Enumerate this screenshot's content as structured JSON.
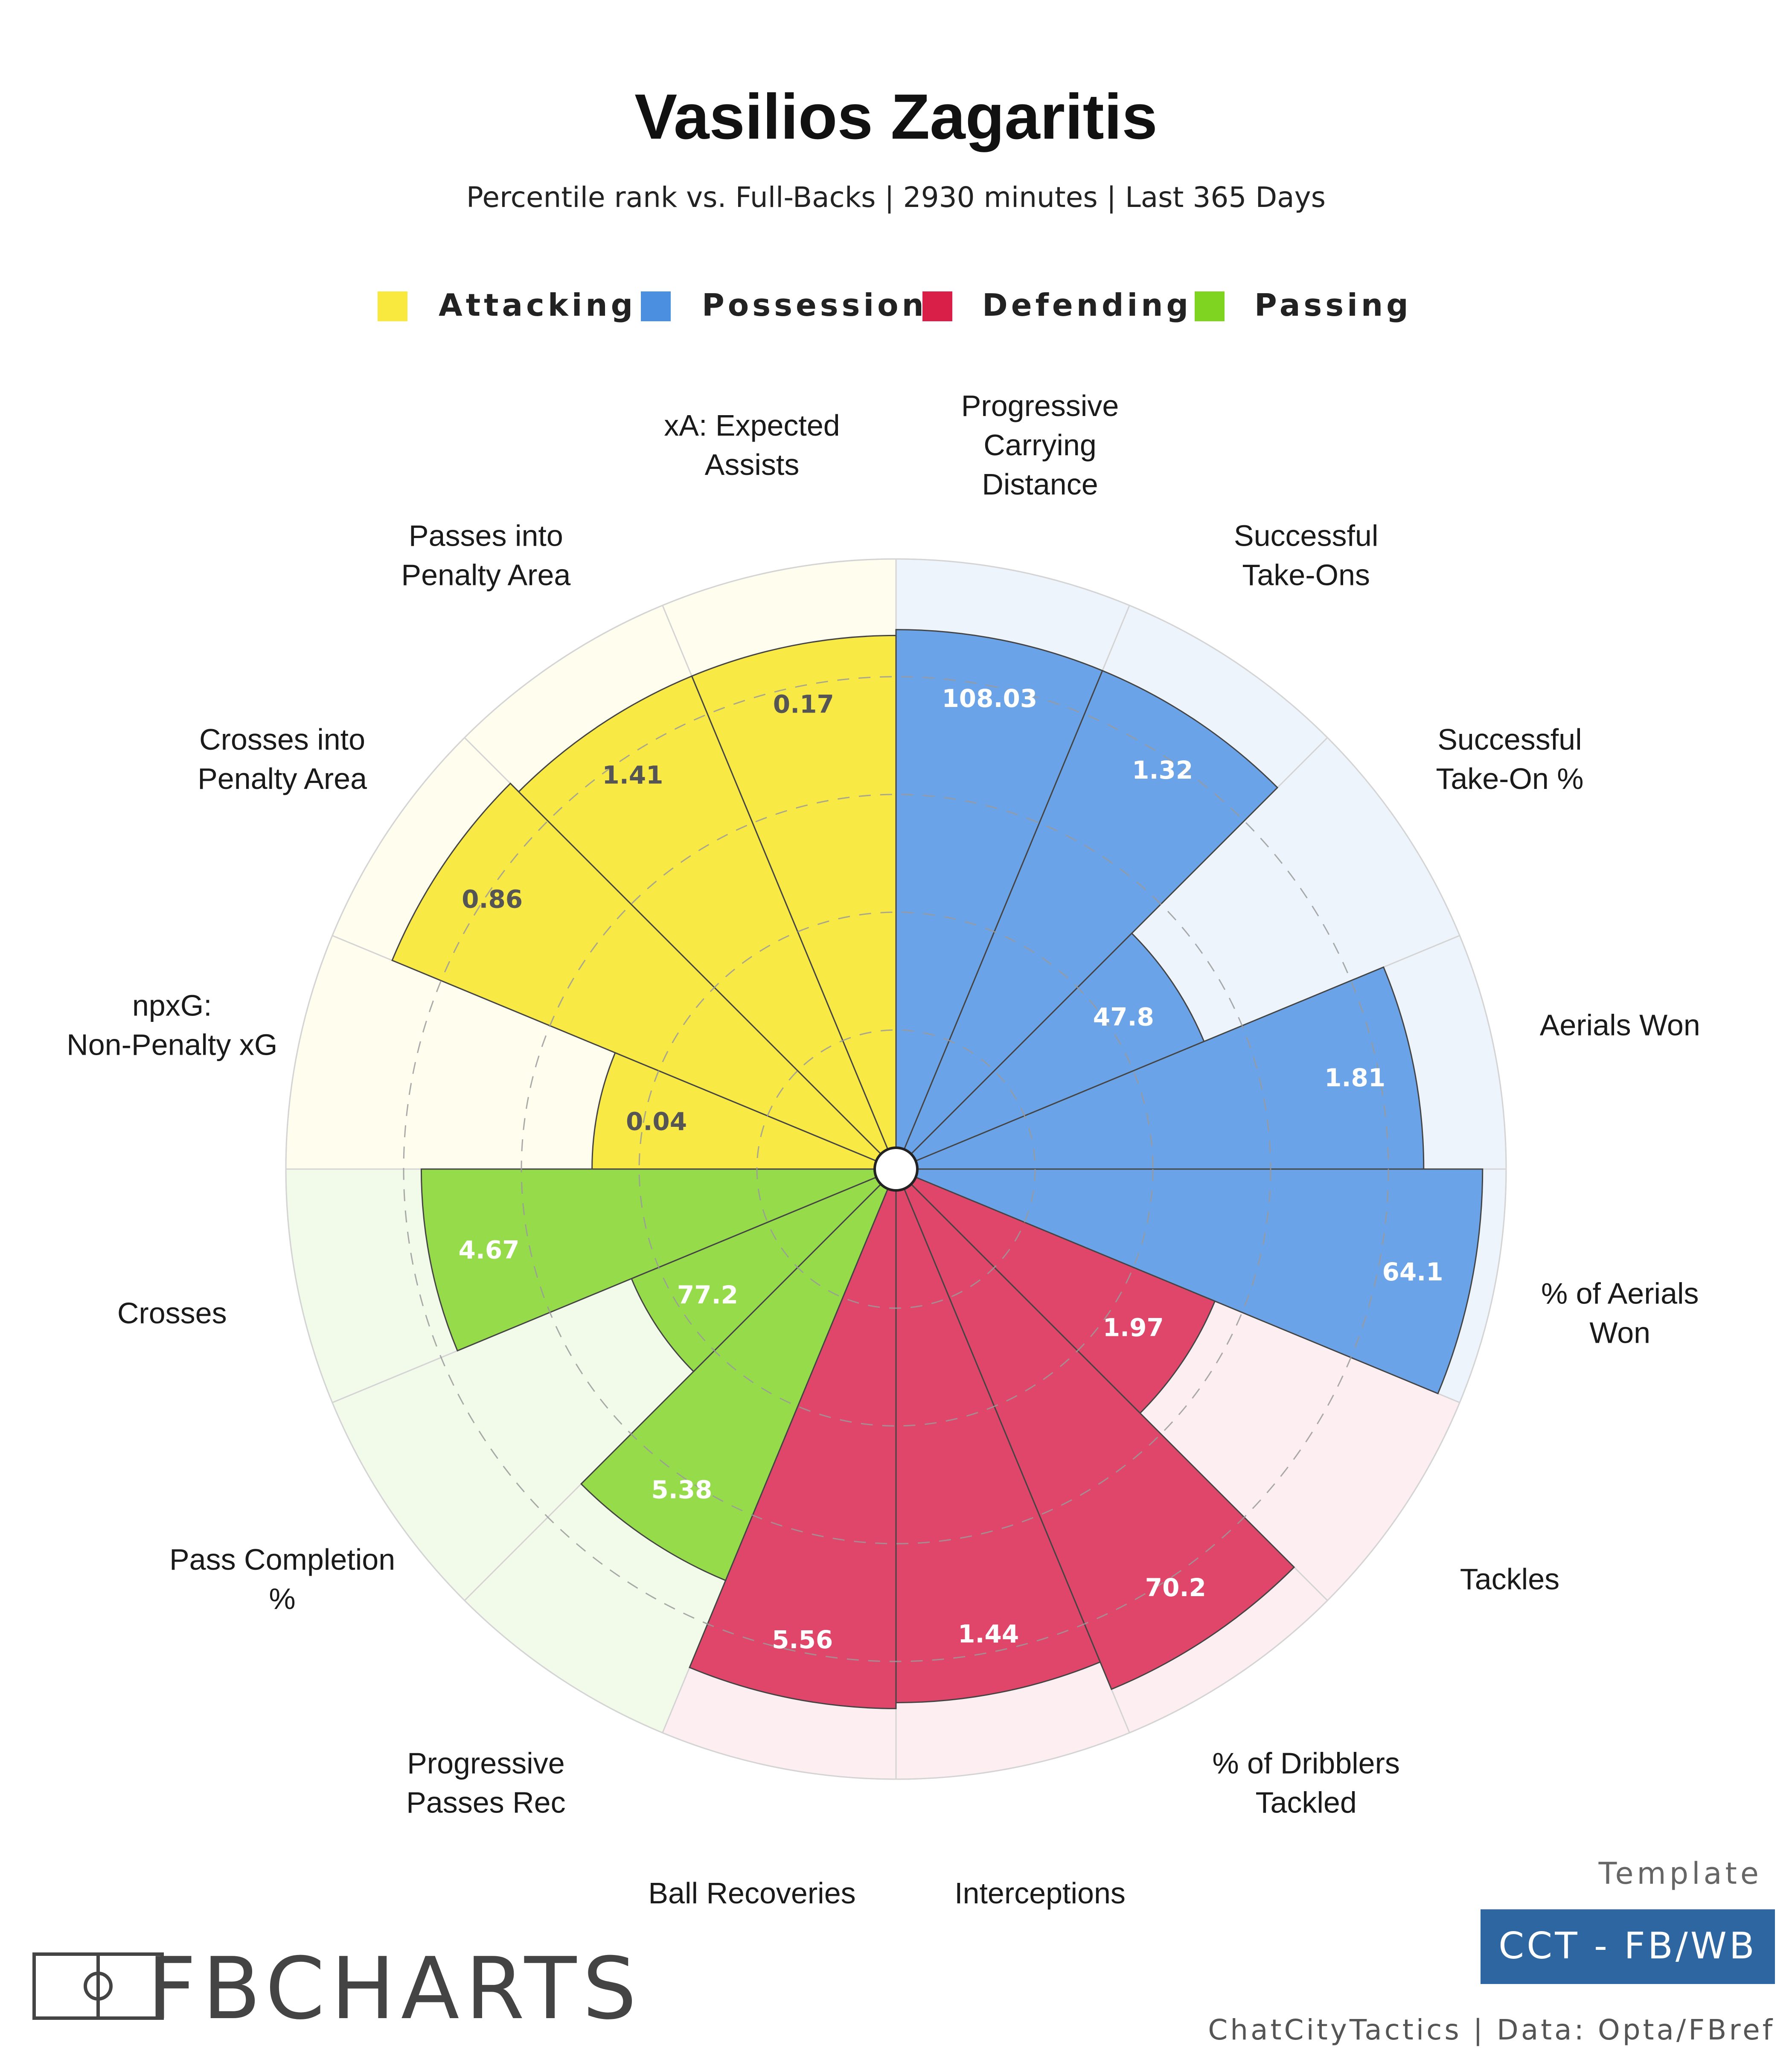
{
  "header": {
    "title": "Vasilios Zagaritis",
    "subtitle": "Percentile rank vs. Full-Backs | 2930 minutes | Last 365 Days"
  },
  "legend": [
    {
      "name": "Attacking",
      "color": "#f9e93f"
    },
    {
      "name": "Possession",
      "color": "#4a8fe0"
    },
    {
      "name": "Defending",
      "color": "#d91e48"
    },
    {
      "name": "Passing",
      "color": "#7fd321"
    }
  ],
  "colors": {
    "Attacking": {
      "fill": "#f9e945",
      "bg": "#fefdee"
    },
    "Possession": {
      "fill": "#6aa3e8",
      "bg": "#eef4fc"
    },
    "Defending": {
      "fill": "#e0456a",
      "bg": "#fdeef2"
    },
    "Passing": {
      "fill": "#96dc4a",
      "bg": "#f2faea"
    },
    "value_text_light": "#ffffff",
    "value_text_dark": "#555555",
    "footer_box": "#2e66a1"
  },
  "chart_data": {
    "type": "polar-bar",
    "rmax": 100,
    "value_ring": 20,
    "metrics": [
      {
        "label": "Progressive Carrying Distance",
        "category": "Possession",
        "value": "108.03",
        "percentile": 88
      },
      {
        "label": "Successful Take-Ons",
        "category": "Possession",
        "value": "1.32",
        "percentile": 88
      },
      {
        "label": "Successful Take-On %",
        "category": "Possession",
        "value": "47.8",
        "percentile": 53
      },
      {
        "label": "Aerials Won",
        "category": "Possession",
        "value": "1.81",
        "percentile": 86
      },
      {
        "label": "% of Aerials Won",
        "category": "Possession",
        "value": "64.1",
        "percentile": 96
      },
      {
        "label": "Tackles",
        "category": "Defending",
        "value": "1.97",
        "percentile": 55
      },
      {
        "label": "% of Dribblers Tackled",
        "category": "Defending",
        "value": "70.2",
        "percentile": 92
      },
      {
        "label": "Interceptions",
        "category": "Defending",
        "value": "1.44",
        "percentile": 87
      },
      {
        "label": "Ball Recoveries",
        "category": "Defending",
        "value": "5.56",
        "percentile": 88
      },
      {
        "label": "Progressive Passes Rec",
        "category": "Passing",
        "value": "5.38",
        "percentile": 72
      },
      {
        "label": "Pass Completion %",
        "category": "Passing",
        "value": "77.2",
        "percentile": 45
      },
      {
        "label": "Crosses",
        "category": "Passing",
        "value": "4.67",
        "percentile": 77
      },
      {
        "label": "npxG: Non-Penalty xG",
        "category": "Attacking",
        "value": "0.04",
        "percentile": 48
      },
      {
        "label": "Crosses into Penalty Area",
        "category": "Attacking",
        "value": "0.86",
        "percentile": 89
      },
      {
        "label": "Passes into Penalty Area",
        "category": "Attacking",
        "value": "1.41",
        "percentile": 87
      },
      {
        "label": "xA: Expected Assists",
        "category": "Attacking",
        "value": "0.17",
        "percentile": 87
      }
    ]
  },
  "footer": {
    "template_label": "Template",
    "template_name": "CCT - FB/WB",
    "credit": "ChatCityTactics | Data: Opta/FBref",
    "logo_text": "FBCHARTS"
  }
}
